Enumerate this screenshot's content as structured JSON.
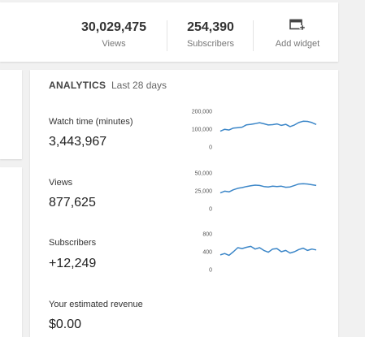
{
  "stats": {
    "views": {
      "value": "30,029,475",
      "label": "Views"
    },
    "subscribers": {
      "value": "254,390",
      "label": "Subscribers"
    },
    "add_widget": {
      "label": "Add widget",
      "icon": "add-widget-icon"
    }
  },
  "analytics": {
    "title": "ANALYTICS",
    "period": "Last 28 days",
    "metrics": [
      {
        "label": "Watch time (minutes)",
        "value": "3,443,967"
      },
      {
        "label": "Views",
        "value": "877,625"
      },
      {
        "label": "Subscribers",
        "value": "+12,249"
      },
      {
        "label": "Your estimated revenue",
        "value": "$0.00"
      }
    ]
  },
  "colors": {
    "line": "#3b86c8",
    "background": "#f1f1f1",
    "card": "#ffffff"
  },
  "chart_data": [
    {
      "type": "line",
      "yticks": [
        "200,000",
        "100,000",
        "0"
      ],
      "ylim": [
        0,
        200000
      ],
      "series": [
        {
          "values": [
            88000,
            99000,
            95000,
            106000,
            108000,
            111000,
            124000,
            127000,
            131000,
            136000,
            130000,
            123000,
            125000,
            129000,
            121000,
            127000,
            114000,
            123000,
            137000,
            144000,
            143000,
            137000,
            126000
          ]
        }
      ]
    },
    {
      "type": "line",
      "yticks": [
        "50,000",
        "25,000",
        "0"
      ],
      "ylim": [
        0,
        50000
      ],
      "series": [
        {
          "values": [
            22000,
            24500,
            23500,
            26500,
            28500,
            29500,
            31000,
            32000,
            33000,
            32500,
            31000,
            30500,
            31500,
            31000,
            31500,
            30000,
            30500,
            32500,
            34500,
            35000,
            34500,
            33500,
            32500
          ]
        }
      ]
    },
    {
      "type": "line",
      "yticks": [
        "800",
        "400",
        "0"
      ],
      "ylim": [
        0,
        800
      ],
      "series": [
        {
          "values": [
            330,
            360,
            320,
            400,
            490,
            470,
            500,
            520,
            460,
            490,
            430,
            390,
            460,
            470,
            400,
            430,
            370,
            400,
            450,
            480,
            430,
            460,
            440
          ]
        }
      ]
    }
  ]
}
